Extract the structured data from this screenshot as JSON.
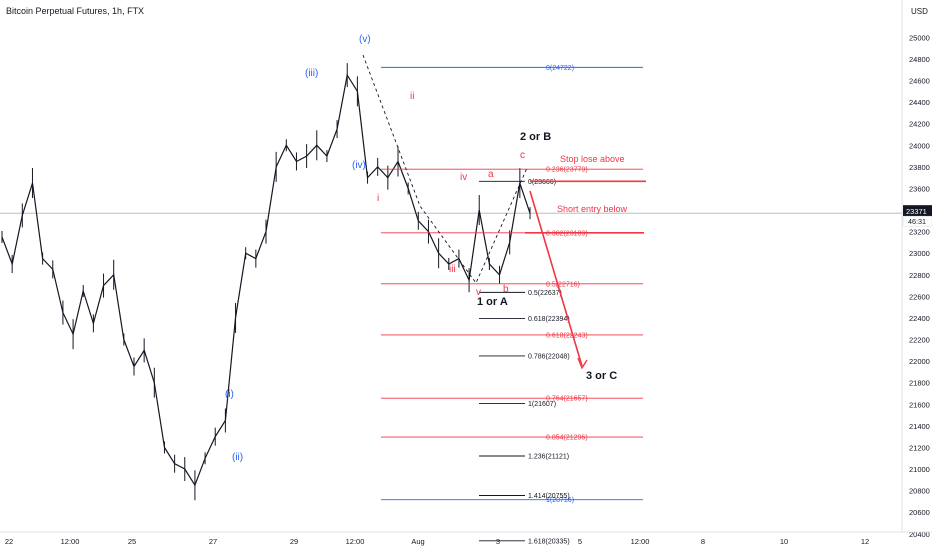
{
  "header": {
    "title": "Bitcoin Perpetual Futures, 1h, FTX"
  },
  "axis": {
    "currency": "USD",
    "y_ticks": [
      20400,
      20600,
      20800,
      21000,
      21200,
      21400,
      21600,
      21800,
      22000,
      22200,
      22400,
      22600,
      22800,
      23000,
      23200,
      23400,
      23600,
      23800,
      24000,
      24200,
      24400,
      24600,
      24800,
      25000
    ],
    "x_ticks": [
      "22",
      "12:00",
      "25",
      "27",
      "29",
      "12:00",
      "Aug",
      "3",
      "5",
      "12:00",
      "8",
      "10",
      "12"
    ],
    "price_label": "23371",
    "countdown_label": "46:31"
  },
  "colors": {
    "price_line": "#b2b5be",
    "blue": "#2962ff",
    "red": "#f23645",
    "wave_blue": "#2962ff",
    "wave_red": "#f23645",
    "black": "#131722"
  },
  "chart_data": {
    "type": "line",
    "ylim": [
      20200,
      25200
    ],
    "close_series": [
      {
        "x": "Jul 21 18:00",
        "y": 23150
      },
      {
        "x": "Jul 22 00:00",
        "y": 22900
      },
      {
        "x": "Jul 22 06:00",
        "y": 23350
      },
      {
        "x": "Jul 22 12:00",
        "y": 23650
      },
      {
        "x": "Jul 22 18:00",
        "y": 22950
      },
      {
        "x": "Jul 23 00:00",
        "y": 22850
      },
      {
        "x": "Jul 23 06:00",
        "y": 22450
      },
      {
        "x": "Jul 23 12:00",
        "y": 22250
      },
      {
        "x": "Jul 23 18:00",
        "y": 22650
      },
      {
        "x": "Jul 24 00:00",
        "y": 22350
      },
      {
        "x": "Jul 24 06:00",
        "y": 22700
      },
      {
        "x": "Jul 24 12:00",
        "y": 22800
      },
      {
        "x": "Jul 24 18:00",
        "y": 22200
      },
      {
        "x": "Jul 25 00:00",
        "y": 21950
      },
      {
        "x": "Jul 25 06:00",
        "y": 22100
      },
      {
        "x": "Jul 25 12:00",
        "y": 21800
      },
      {
        "x": "Jul 25 18:00",
        "y": 21200
      },
      {
        "x": "Jul 26 00:00",
        "y": 21050
      },
      {
        "x": "Jul 26 06:00",
        "y": 21000
      },
      {
        "x": "Jul 26 12:00",
        "y": 20850
      },
      {
        "x": "Jul 26 18:00",
        "y": 21100
      },
      {
        "x": "Jul 27 00:00",
        "y": 21300
      },
      {
        "x": "Jul 27 06:00",
        "y": 21450
      },
      {
        "x": "Jul 27 12:00",
        "y": 22400
      },
      {
        "x": "Jul 27 18:00",
        "y": 23000
      },
      {
        "x": "Jul 28 00:00",
        "y": 22950
      },
      {
        "x": "Jul 28 06:00",
        "y": 23200
      },
      {
        "x": "Jul 28 12:00",
        "y": 23800
      },
      {
        "x": "Jul 28 18:00",
        "y": 24000
      },
      {
        "x": "Jul 29 00:00",
        "y": 23850
      },
      {
        "x": "Jul 29 06:00",
        "y": 23900
      },
      {
        "x": "Jul 29 12:00",
        "y": 24000
      },
      {
        "x": "Jul 29 18:00",
        "y": 23900
      },
      {
        "x": "Jul 30 00:00",
        "y": 24150
      },
      {
        "x": "Jul 30 06:00",
        "y": 24650
      },
      {
        "x": "Jul 30 12:00",
        "y": 24500
      },
      {
        "x": "Jul 30 18:00",
        "y": 23700
      },
      {
        "x": "Jul 31 00:00",
        "y": 23800
      },
      {
        "x": "Jul 31 06:00",
        "y": 23700
      },
      {
        "x": "Jul 31 12:00",
        "y": 23850
      },
      {
        "x": "Jul 31 18:00",
        "y": 23600
      },
      {
        "x": "Aug 1 00:00",
        "y": 23300
      },
      {
        "x": "Aug 1 06:00",
        "y": 23200
      },
      {
        "x": "Aug 1 12:00",
        "y": 23000
      },
      {
        "x": "Aug 1 18:00",
        "y": 22900
      },
      {
        "x": "Aug 2 00:00",
        "y": 22950
      },
      {
        "x": "Aug 2 06:00",
        "y": 22750
      },
      {
        "x": "Aug 2 12:00",
        "y": 23400
      },
      {
        "x": "Aug 2 18:00",
        "y": 22900
      },
      {
        "x": "Aug 3 00:00",
        "y": 22800
      },
      {
        "x": "Aug 3 06:00",
        "y": 23100
      },
      {
        "x": "Aug 3 12:00",
        "y": 23650
      },
      {
        "x": "Aug 3 18:00",
        "y": 23371
      }
    ],
    "fib_levels_left": [
      {
        "label": "0(24722)",
        "y": 24722,
        "color": "blue"
      },
      {
        "label": "0.236(23779)",
        "y": 23779,
        "color": "red"
      },
      {
        "label": "0.382(23189)",
        "y": 23189,
        "color": "red"
      },
      {
        "label": "0.5(22716)",
        "y": 22716,
        "color": "red"
      },
      {
        "label": "0.618(22243)",
        "y": 22243,
        "color": "red"
      },
      {
        "label": "0.764(21657)",
        "y": 21657,
        "color": "red"
      },
      {
        "label": "0.854(21296)",
        "y": 21296,
        "color": "red"
      },
      {
        "label": "1(20716)",
        "y": 20716,
        "color": "blue"
      }
    ],
    "fib_levels_right": [
      {
        "label": "0(23666)",
        "y": 23666
      },
      {
        "label": "0.5(22637)",
        "y": 22637
      },
      {
        "label": "0.618(22394)",
        "y": 22394
      },
      {
        "label": "0.786(22048)",
        "y": 22048
      },
      {
        "label": "1(21607)",
        "y": 21607
      },
      {
        "label": "1.236(21121)",
        "y": 21121
      },
      {
        "label": "1.414(20755)",
        "y": 20755
      },
      {
        "label": "1.618(20335)",
        "y": 20335
      }
    ],
    "annotations": {
      "stop_loss": "Stop lose above",
      "short_entry": "Short entry below",
      "label_2b": "2 or B",
      "label_1a": "1 or A",
      "label_3c": "3 or C"
    },
    "waves_blue": [
      "(i)",
      "(ii)",
      "(iii)",
      "(iv)",
      "(v)"
    ],
    "waves_red": [
      "i",
      "ii",
      "iii",
      "iv",
      "v",
      "a",
      "b",
      "c"
    ]
  }
}
